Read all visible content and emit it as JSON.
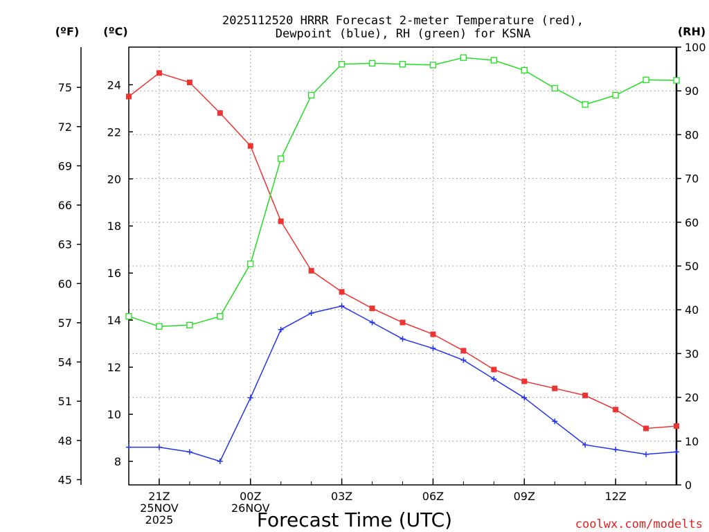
{
  "chart_data": {
    "type": "line",
    "title_line1": "2025112520 HRRR Forecast 2-meter Temperature (red),",
    "title_line2": "Dewpoint (blue), RH (green) for KSNA",
    "xlabel": "Forecast Time (UTC)",
    "left_f_label": "(ºF)",
    "left_c_label": "(ºC)",
    "right_label": "(RH)",
    "credit": "coolwx.com/modelts",
    "x_hours": [
      20,
      21,
      22,
      23,
      24,
      25,
      26,
      27,
      28,
      29,
      30,
      31,
      32,
      33,
      34,
      35,
      36,
      37,
      38
    ],
    "x_ticks": [
      {
        "hour": 21,
        "lines": [
          "21Z",
          "25NOV",
          "2025"
        ]
      },
      {
        "hour": 24,
        "lines": [
          "00Z",
          "26NOV"
        ]
      },
      {
        "hour": 27,
        "lines": [
          "03Z"
        ]
      },
      {
        "hour": 30,
        "lines": [
          "06Z"
        ]
      },
      {
        "hour": 33,
        "lines": [
          "09Z"
        ]
      },
      {
        "hour": 36,
        "lines": [
          "12Z"
        ]
      }
    ],
    "xlim": [
      20,
      38
    ],
    "ylim_c": [
      7,
      25.6
    ],
    "ylim_rh": [
      0,
      100
    ],
    "celsius_ticks": [
      8,
      10,
      12,
      14,
      16,
      18,
      20,
      22,
      24
    ],
    "fahrenheit_ticks": [
      45,
      48,
      51,
      54,
      57,
      60,
      63,
      66,
      69,
      72,
      75
    ],
    "rh_ticks": [
      0,
      10,
      20,
      30,
      40,
      50,
      60,
      70,
      80,
      90,
      100
    ],
    "series": [
      {
        "name": "Temperature",
        "axis": "celsius",
        "color": "#ee3333",
        "marker": "filled-square",
        "values": [
          23.5,
          24.5,
          24.1,
          22.8,
          21.4,
          18.2,
          16.1,
          15.2,
          14.5,
          13.9,
          13.4,
          12.7,
          11.9,
          11.4,
          11.1,
          10.8,
          10.2,
          9.4,
          9.5
        ]
      },
      {
        "name": "Dewpoint",
        "axis": "celsius",
        "color": "#2233ee",
        "marker": "plus",
        "values": [
          8.6,
          8.6,
          8.4,
          8.0,
          10.7,
          13.6,
          14.3,
          14.6,
          13.9,
          13.2,
          12.8,
          12.3,
          11.5,
          10.7,
          9.7,
          8.7,
          8.5,
          8.3,
          8.4
        ]
      },
      {
        "name": "RH",
        "axis": "rh",
        "color": "#22dd22",
        "marker": "open-square",
        "values": [
          38.5,
          36.2,
          36.5,
          38.5,
          50.5,
          74.5,
          89.0,
          96.1,
          96.3,
          96.1,
          95.9,
          97.6,
          97.0,
          94.7,
          90.6,
          86.9,
          89.0,
          92.5,
          92.4
        ]
      }
    ]
  }
}
